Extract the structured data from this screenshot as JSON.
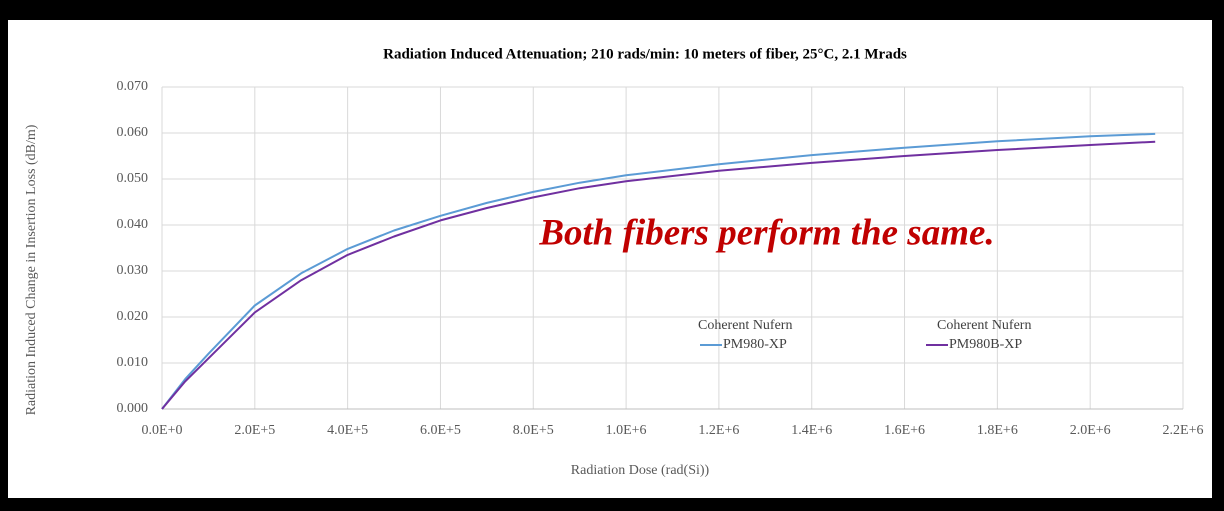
{
  "chart_data": {
    "type": "line",
    "title": "Radiation Induced Attenuation; 210 rads/min: 10 meters of fiber, 25°C, 2.1 Mrads",
    "x_label": "Radiation Dose (rad(Si))",
    "y_label": "Radiation Induced Change in Insertion Loss (dB/m)",
    "annotation": "Both fibers perform the same.",
    "x": [
      0,
      50000,
      100000,
      200000,
      300000,
      400000,
      500000,
      600000,
      700000,
      800000,
      900000,
      1000000,
      1200000,
      1400000,
      1600000,
      1800000,
      2000000,
      2140000
    ],
    "series": [
      {
        "name": "PM980-XP",
        "group": "Coherent Nufern",
        "color": "#5b9bd5",
        "values": [
          0,
          0.0065,
          0.012,
          0.0225,
          0.0295,
          0.0348,
          0.0388,
          0.042,
          0.0448,
          0.0472,
          0.0492,
          0.0508,
          0.0532,
          0.0552,
          0.0568,
          0.0582,
          0.0593,
          0.0598
        ]
      },
      {
        "name": "PM980B-XP",
        "group": "Coherent Nufern",
        "color": "#7030a0",
        "values": [
          0,
          0.006,
          0.011,
          0.021,
          0.028,
          0.0335,
          0.0375,
          0.041,
          0.0437,
          0.046,
          0.048,
          0.0495,
          0.0518,
          0.0535,
          0.055,
          0.0563,
          0.0574,
          0.0581
        ]
      }
    ],
    "xlim": [
      0,
      2200000
    ],
    "ylim": [
      0,
      0.07
    ],
    "xticks": [
      {
        "value": 0,
        "label": "0.0E+0"
      },
      {
        "value": 200000,
        "label": "2.0E+5"
      },
      {
        "value": 400000,
        "label": "4.0E+5"
      },
      {
        "value": 600000,
        "label": "6.0E+5"
      },
      {
        "value": 800000,
        "label": "8.0E+5"
      },
      {
        "value": 1000000,
        "label": "1.0E+6"
      },
      {
        "value": 1200000,
        "label": "1.2E+6"
      },
      {
        "value": 1400000,
        "label": "1.4E+6"
      },
      {
        "value": 1600000,
        "label": "1.6E+6"
      },
      {
        "value": 1800000,
        "label": "1.8E+6"
      },
      {
        "value": 2000000,
        "label": "2.0E+6"
      },
      {
        "value": 2200000,
        "label": "2.2E+6"
      }
    ],
    "yticks": [
      {
        "value": 0,
        "label": "0.000"
      },
      {
        "value": 0.01,
        "label": "0.010"
      },
      {
        "value": 0.02,
        "label": "0.020"
      },
      {
        "value": 0.03,
        "label": "0.030"
      },
      {
        "value": 0.04,
        "label": "0.040"
      },
      {
        "value": 0.05,
        "label": "0.050"
      },
      {
        "value": 0.06,
        "label": "0.060"
      },
      {
        "value": 0.07,
        "label": "0.070"
      }
    ],
    "grid": true
  }
}
